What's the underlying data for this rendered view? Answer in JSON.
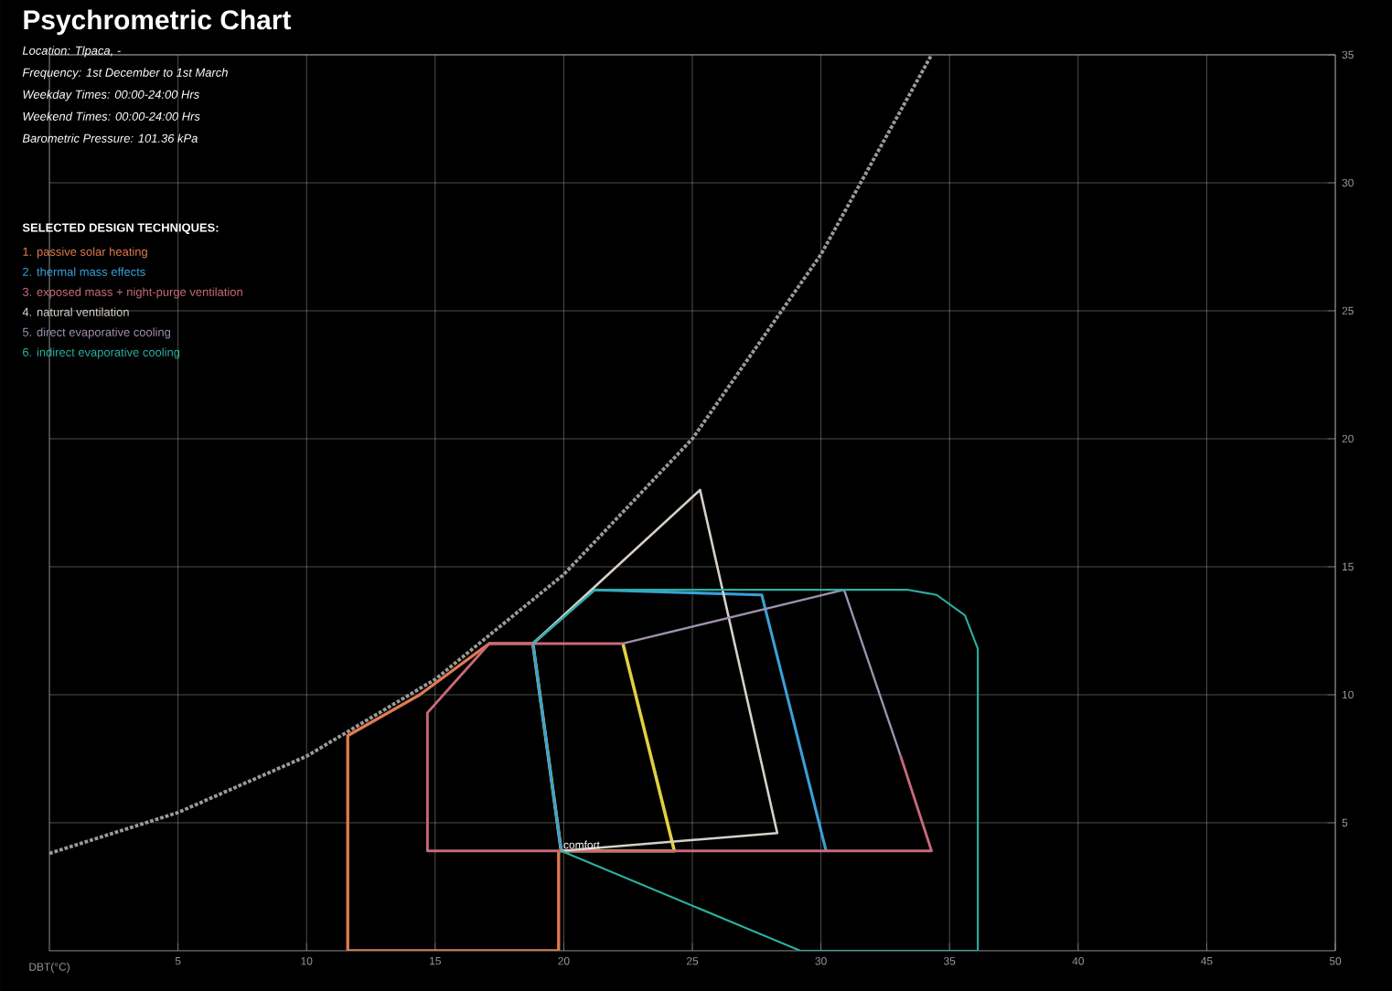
{
  "chart_data": {
    "type": "line",
    "title": "Psychrometric Chart",
    "xlabel": "DBT(°C)",
    "legend_title": "SELECTED DESIGN TECHNIQUES:",
    "legend": "top left",
    "grid": true,
    "xlim": [
      0,
      50
    ],
    "ylim": [
      0,
      35
    ],
    "xticks": [
      5,
      10,
      15,
      20,
      25,
      30,
      35,
      40,
      45,
      50
    ],
    "yticks": [
      5,
      10,
      15,
      20,
      25,
      30,
      35
    ],
    "series": [
      {
        "color": "#9a9a9a",
        "line_style": "dotted",
        "x": [
          0,
          5,
          10,
          15,
          20,
          25,
          30,
          34.3
        ],
        "values": [
          3.8,
          5.4,
          7.6,
          10.6,
          14.7,
          20,
          27.2,
          35
        ]
      },
      {
        "color": "#e0d040",
        "x": [
          22.3,
          24.3,
          19.9,
          18.8
        ],
        "values": [
          12,
          3.9,
          3.9,
          12
        ]
      },
      {
        "name": "1. passive solar heating",
        "color": "#e07a50",
        "x": [
          19.8,
          19.8,
          11.6,
          11.6,
          14.4,
          17.1,
          18.8
        ],
        "values": [
          3.9,
          0,
          0,
          8.4,
          10,
          12,
          12
        ]
      },
      {
        "name": "2. thermal mass effects",
        "color": "#3aa0d8",
        "x": [
          19.9,
          18.8,
          21.2,
          27.7,
          30.2
        ],
        "values": [
          3.9,
          12,
          14.1,
          13.9,
          3.9
        ]
      },
      {
        "name": "3. exposed mass + night-purge ventilation",
        "color": "#c86a7a",
        "x": [
          33.1,
          34.3,
          14.7,
          14.7,
          17.1,
          22.3
        ],
        "values": [
          7.6,
          3.9,
          3.9,
          9.3,
          12,
          12
        ]
      },
      {
        "name": "4. natural ventilation",
        "color": "#d8d0c8",
        "x": [
          18.8,
          25.3,
          28.3,
          19.9
        ],
        "values": [
          12,
          18,
          4.6,
          3.9
        ]
      },
      {
        "name": "5. direct evaporative cooling",
        "color": "#a090b0",
        "x": [
          22.3,
          30.9,
          33.1
        ],
        "values": [
          12,
          14.1,
          7.6
        ]
      },
      {
        "name": "6. indirect evaporative cooling",
        "color": "#2ab0a0",
        "x": [
          18.8,
          21.2,
          33.4,
          34.5,
          35.6,
          36.1,
          36.1,
          29.2,
          19.9
        ],
        "values": [
          12,
          14.1,
          14.1,
          13.9,
          13.1,
          11.8,
          0,
          0,
          3.9
        ]
      }
    ],
    "annotations": [
      "Location: Tlpaca, -",
      "Frequency: 1st December to 1st March",
      "Weekday Times: 00:00-24:00 Hrs",
      "Weekend Times: 00:00-24:00 Hrs",
      "Barometric Pressure: 101.36 kPa",
      {
        "text": "comfort",
        "x": 19.9,
        "y": 3.9
      }
    ]
  }
}
